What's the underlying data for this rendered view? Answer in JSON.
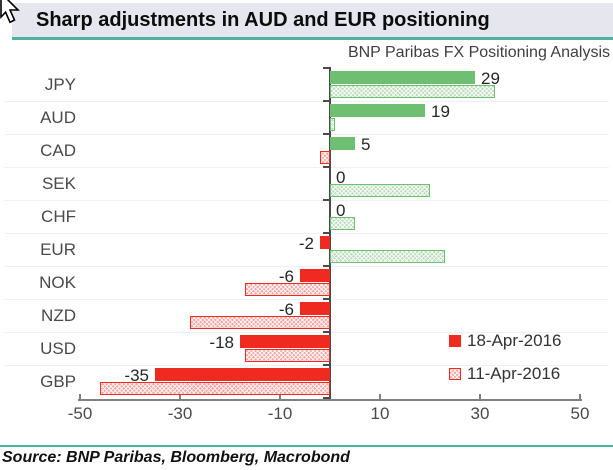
{
  "header": {
    "title": "Sharp adjustments in AUD and EUR positioning",
    "subtitle": "BNP Paribas FX Positioning Analysis"
  },
  "footer": {
    "source": "Source:  BNP Paribas, Bloomberg, Macrobond"
  },
  "colors": {
    "accent_teal": "#4cb3a0",
    "title_bg": "#e6e6ee",
    "positive": "#6fbf72",
    "negative": "#ee2a21",
    "axis": "#808080"
  },
  "chart_data": {
    "type": "bar",
    "orientation": "horizontal",
    "title": "Sharp adjustments in AUD and EUR positioning",
    "subtitle": "BNP Paribas FX Positioning Analysis",
    "categories": [
      "JPY",
      "AUD",
      "CAD",
      "SEK",
      "CHF",
      "EUR",
      "NOK",
      "NZD",
      "USD",
      "GBP"
    ],
    "series": [
      {
        "name": "18-Apr-2016",
        "style": "solid",
        "values": [
          29,
          19,
          5,
          0,
          0,
          -2,
          -6,
          -6,
          -18,
          -35
        ]
      },
      {
        "name": "11-Apr-2016",
        "style": "hatched",
        "values": [
          33,
          1,
          -2,
          20,
          5,
          23,
          -17,
          -28,
          -17,
          -46
        ]
      }
    ],
    "value_labels": [
      "29",
      "19",
      "5",
      "0",
      "0",
      "-2",
      "-6",
      "-6",
      "-18",
      "-35"
    ],
    "xlim": [
      -50,
      50
    ],
    "x_ticks": [
      -50,
      -30,
      -10,
      10,
      30,
      50
    ],
    "grid": "faint horizontal category separators",
    "legend_position": "bottom-right",
    "color_rule": "green = positive, red = negative; solid = 18-Apr-2016, hatched = 11-Apr-2016"
  }
}
